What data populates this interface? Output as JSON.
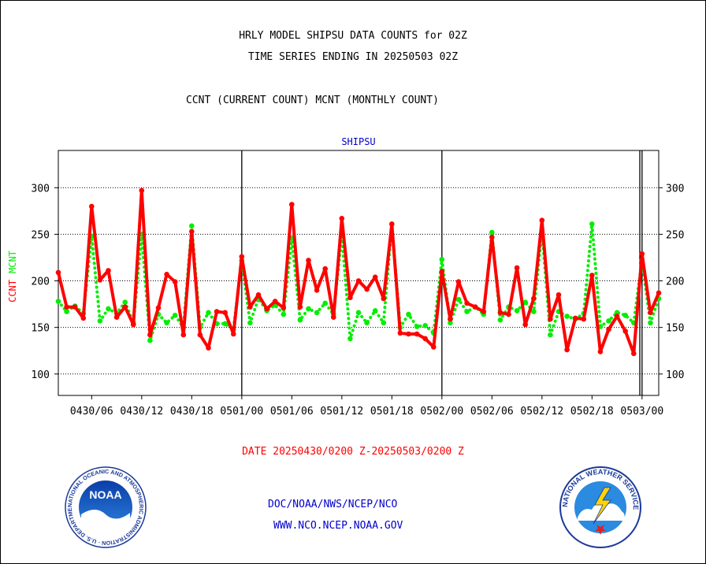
{
  "header": {
    "line1": "HRLY MODEL SHIPSU DATA COUNTS for 02Z",
    "line2": "TIME SERIES ENDING IN 20250503 02Z",
    "line3": "CCNT (CURRENT COUNT) MCNT (MONTHLY COUNT)"
  },
  "footer": {
    "date_range": "DATE 20250430/0200 Z-20250503/0200 Z",
    "org": "DOC/NOAA/NWS/NCEP/NCO",
    "url": "WWW.NCO.NCEP.NOAA.GOV"
  },
  "logos": {
    "left": {
      "text": "NOAA",
      "ring_text": "NATIONAL OCEANIC AND ATMOSPHERIC ADMINISTRATION · U.S. DEPARTMENT OF COMMERCE"
    },
    "right": {
      "ring_text": "NATIONAL WEATHER SERVICE"
    }
  },
  "colors": {
    "ccnt": "#ff0000",
    "mcnt": "#00ee00",
    "title": "#0000cc",
    "date": "#ff0000"
  },
  "chart_data": {
    "type": "line",
    "title": "SHIPSU",
    "ylabel_parts": [
      "CCNT",
      "MCNT"
    ],
    "ylim": [
      77,
      340
    ],
    "yticks": [
      100,
      150,
      200,
      250,
      300
    ],
    "grid": true,
    "x_start": "2025-04-30 02Z",
    "x_end": "2025-05-03 02Z",
    "x_step_hours": 1,
    "xticks": [
      {
        "hour": 4,
        "label": "0430/06"
      },
      {
        "hour": 10,
        "label": "0430/12"
      },
      {
        "hour": 16,
        "label": "0430/18"
      },
      {
        "hour": 22,
        "label": "0501/00"
      },
      {
        "hour": 28,
        "label": "0501/06"
      },
      {
        "hour": 34,
        "label": "0501/12"
      },
      {
        "hour": 40,
        "label": "0501/18"
      },
      {
        "hour": 46,
        "label": "0502/00"
      },
      {
        "hour": 52,
        "label": "0502/06"
      },
      {
        "hour": 58,
        "label": "0502/12"
      },
      {
        "hour": 64,
        "label": "0502/18"
      },
      {
        "hour": 70,
        "label": "0503/00"
      }
    ],
    "day_boundaries": [
      22,
      46,
      70
    ],
    "series": [
      {
        "name": "CCNT",
        "color": "#ff0000",
        "style": "solid",
        "values": [
          209,
          172,
          172,
          160,
          280,
          201,
          211,
          161,
          172,
          153,
          297,
          142,
          171,
          207,
          199,
          142,
          253,
          142,
          128,
          167,
          166,
          143,
          226,
          172,
          185,
          170,
          178,
          171,
          282,
          172,
          222,
          190,
          213,
          161,
          267,
          182,
          200,
          191,
          204,
          181,
          261,
          144,
          143,
          143,
          138,
          129,
          210,
          159,
          199,
          176,
          172,
          167,
          247,
          166,
          164,
          214,
          153,
          181,
          265,
          159,
          185,
          126,
          160,
          159,
          206,
          124,
          148,
          162,
          146,
          122,
          229,
          166,
          187
        ]
      },
      {
        "name": "MCNT",
        "color": "#00ee00",
        "style": "dotted",
        "values": [
          178,
          167,
          173,
          165,
          248,
          157,
          170,
          165,
          177,
          155,
          250,
          136,
          164,
          155,
          163,
          150,
          259,
          150,
          166,
          154,
          154,
          148,
          222,
          155,
          181,
          168,
          174,
          164,
          246,
          158,
          170,
          166,
          176,
          164,
          250,
          138,
          166,
          155,
          168,
          155,
          261,
          150,
          164,
          151,
          152,
          144,
          223,
          155,
          180,
          167,
          172,
          164,
          252,
          158,
          172,
          168,
          177,
          167,
          254,
          142,
          167,
          162,
          159,
          165,
          261,
          151,
          157,
          166,
          163,
          155,
          222,
          155,
          181
        ]
      }
    ]
  }
}
